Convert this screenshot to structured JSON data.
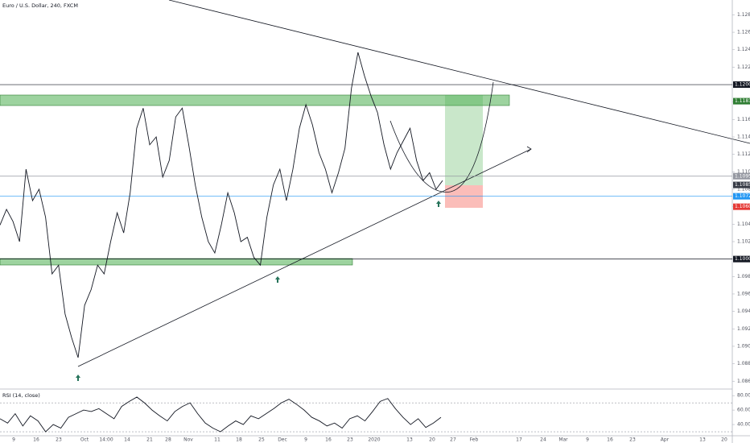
{
  "chart_data": [
    {
      "type": "line",
      "title": "Euro / U.S. Dollar, 240, FXCM",
      "color": "#131722",
      "values": [
        1.1039,
        1.1057,
        1.1043,
        1.102,
        1.1103,
        1.1067,
        1.108,
        1.1048,
        1.0983,
        1.0993,
        1.0937,
        1.091,
        1.0887,
        1.0947,
        1.0965,
        1.0993,
        1.0983,
        1.102,
        1.1053,
        1.103,
        1.1076,
        1.115,
        1.1173,
        1.1131,
        1.114,
        1.1094,
        1.1113,
        1.1163,
        1.1173,
        1.1131,
        1.1085,
        1.1048,
        1.102,
        1.1007,
        1.1039,
        1.1076,
        1.1053,
        1.102,
        1.1025,
        1.1002,
        1.0993,
        1.1048,
        1.1085,
        1.1103,
        1.1067,
        1.1103,
        1.115,
        1.1177,
        1.1154,
        1.1122,
        1.1103,
        1.1076,
        1.1099,
        1.1127,
        1.1196,
        1.1237,
        1.121,
        1.1187,
        1.1168,
        1.1131,
        1.1103,
        1.1122,
        1.1136,
        1.115,
        1.1113,
        1.109,
        1.1099,
        1.108,
        1.109
      ],
      "ylim": [
        1.0851,
        1.1297
      ],
      "yticks": [
        {
          "value": 1.086,
          "label": "1.08600"
        },
        {
          "value": 1.088,
          "label": "1.08800"
        },
        {
          "value": 1.09,
          "label": "1.09000"
        },
        {
          "value": 1.092,
          "label": "1.09200"
        },
        {
          "value": 1.094,
          "label": "1.09400"
        },
        {
          "value": 1.096,
          "label": "1.09600"
        },
        {
          "value": 1.098,
          "label": "1.09800"
        },
        {
          "value": 1.1,
          "label": "1.10000"
        },
        {
          "value": 1.102,
          "label": "1.10200"
        },
        {
          "value": 1.104,
          "label": "1.10400"
        },
        {
          "value": 1.106,
          "label": "1.10600"
        },
        {
          "value": 1.108,
          "label": "1.10800"
        },
        {
          "value": 1.11,
          "label": "1.11000"
        },
        {
          "value": 1.112,
          "label": "1.11200"
        },
        {
          "value": 1.114,
          "label": "1.11400"
        },
        {
          "value": 1.116,
          "label": "1.11600"
        },
        {
          "value": 1.118,
          "label": "1.11800"
        },
        {
          "value": 1.12,
          "label": "1.12000"
        },
        {
          "value": 1.122,
          "label": "1.12200"
        },
        {
          "value": 1.124,
          "label": "1.12400"
        },
        {
          "value": 1.126,
          "label": "1.12600"
        },
        {
          "value": 1.128,
          "label": "1.12800"
        }
      ],
      "levels": [
        {
          "value": 1.12,
          "label": "1.12000",
          "color": "#131722"
        },
        {
          "value": 1.1181,
          "label": "1.11810",
          "color": "#2e7d32"
        },
        {
          "value": 1.1095,
          "label": "1.10950",
          "color": "#9598a1"
        },
        {
          "value": 1.1085,
          "label": "1.10850",
          "color": "#363a45"
        },
        {
          "value": 1.1072,
          "label": "1.10720",
          "color": "#2196f3"
        },
        {
          "value": 1.106,
          "label": "1.10600",
          "color": "#e53935"
        },
        {
          "value": 1.1,
          "label": "1.10000",
          "color": "#131722"
        }
      ]
    },
    {
      "type": "line",
      "title": "RSI (14, close)",
      "color": "#131722",
      "values": [
        48,
        42,
        55,
        38,
        52,
        45,
        30,
        40,
        35,
        50,
        55,
        60,
        58,
        62,
        55,
        48,
        65,
        72,
        78,
        70,
        60,
        52,
        45,
        58,
        65,
        70,
        55,
        42,
        35,
        30,
        38,
        45,
        40,
        52,
        48,
        55,
        62,
        70,
        75,
        68,
        60,
        50,
        45,
        38,
        42,
        35,
        48,
        52,
        45,
        58,
        72,
        76,
        62,
        50,
        40,
        48,
        36,
        42,
        50
      ],
      "ylim": [
        20,
        88
      ],
      "yticks": [
        {
          "value": 80,
          "label": "80.00"
        },
        {
          "value": 60,
          "label": "60.00"
        },
        {
          "value": 40,
          "label": "40.00"
        }
      ],
      "bands": [
        70,
        30
      ]
    }
  ],
  "time_axis": {
    "labels": [
      "9",
      "16",
      "23",
      "Oct",
      "14:00",
      "14",
      "21",
      "28",
      "Nov",
      "11",
      "18",
      "25",
      "Dec",
      "9",
      "16",
      "23",
      "2020",
      "13",
      "20",
      "27",
      "Feb",
      "17",
      "24",
      "Mar",
      "9",
      "16",
      "23",
      "Apr",
      "13",
      "20"
    ]
  }
}
